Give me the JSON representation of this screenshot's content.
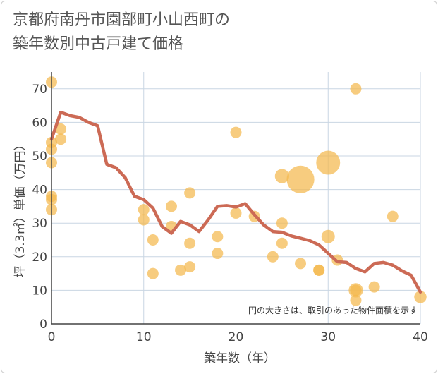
{
  "chart_data": {
    "type": "scatter",
    "title_line1": "京都府南丹市園部町小山西町の",
    "title_line2": "築年数別中古戸建て価格",
    "xlabel": "築年数（年）",
    "ylabel": "坪（3.3㎡）単価（万円）",
    "xlim": [
      0,
      40
    ],
    "ylim": [
      0,
      75
    ],
    "x_ticks": [
      "0",
      "10",
      "20",
      "30",
      "40"
    ],
    "y_ticks": [
      "0",
      "10",
      "20",
      "30",
      "40",
      "50",
      "60",
      "70"
    ],
    "note": "円の大きさは、取引のあった物件面積を示す",
    "colors": {
      "bubble": "#f4b84e",
      "line": "#cc6a55",
      "grid": "#c9d6e3"
    },
    "points": [
      {
        "x": 0,
        "y": 72,
        "s": 1
      },
      {
        "x": 0,
        "y": 54,
        "s": 1
      },
      {
        "x": 0,
        "y": 52,
        "s": 1
      },
      {
        "x": 0,
        "y": 48,
        "s": 1
      },
      {
        "x": 0,
        "y": 38,
        "s": 1
      },
      {
        "x": 0,
        "y": 37,
        "s": 1
      },
      {
        "x": 0,
        "y": 34,
        "s": 1
      },
      {
        "x": 1,
        "y": 58,
        "s": 1
      },
      {
        "x": 1,
        "y": 55,
        "s": 1
      },
      {
        "x": 10,
        "y": 34,
        "s": 1
      },
      {
        "x": 10,
        "y": 31,
        "s": 1
      },
      {
        "x": 11,
        "y": 25,
        "s": 1
      },
      {
        "x": 11,
        "y": 15,
        "s": 1
      },
      {
        "x": 13,
        "y": 35,
        "s": 1
      },
      {
        "x": 13,
        "y": 29,
        "s": 1
      },
      {
        "x": 14,
        "y": 16,
        "s": 1
      },
      {
        "x": 15,
        "y": 39,
        "s": 1
      },
      {
        "x": 15,
        "y": 24,
        "s": 1
      },
      {
        "x": 15,
        "y": 17,
        "s": 1
      },
      {
        "x": 18,
        "y": 26,
        "s": 1
      },
      {
        "x": 18,
        "y": 21,
        "s": 1
      },
      {
        "x": 20,
        "y": 57,
        "s": 1
      },
      {
        "x": 20,
        "y": 33,
        "s": 1
      },
      {
        "x": 22,
        "y": 32,
        "s": 1
      },
      {
        "x": 24,
        "y": 20,
        "s": 1
      },
      {
        "x": 25,
        "y": 44,
        "s": 1.6
      },
      {
        "x": 25,
        "y": 30,
        "s": 1
      },
      {
        "x": 25,
        "y": 24,
        "s": 1
      },
      {
        "x": 27,
        "y": 43,
        "s": 6
      },
      {
        "x": 27,
        "y": 18,
        "s": 1
      },
      {
        "x": 29,
        "y": 16,
        "s": 1
      },
      {
        "x": 29,
        "y": 16,
        "s": 1
      },
      {
        "x": 30,
        "y": 48,
        "s": 4.5
      },
      {
        "x": 30,
        "y": 26,
        "s": 1.4
      },
      {
        "x": 31,
        "y": 19,
        "s": 1
      },
      {
        "x": 33,
        "y": 70,
        "s": 1
      },
      {
        "x": 33,
        "y": 10,
        "s": 1.6
      },
      {
        "x": 33,
        "y": 10,
        "s": 1
      },
      {
        "x": 33,
        "y": 7,
        "s": 1
      },
      {
        "x": 35,
        "y": 11,
        "s": 1
      },
      {
        "x": 37,
        "y": 32,
        "s": 1
      },
      {
        "x": 40,
        "y": 8,
        "s": 1.2
      }
    ],
    "trend": {
      "x": [
        0,
        1,
        2,
        3,
        4,
        5,
        6,
        7,
        8,
        9,
        10,
        11,
        12,
        13,
        14,
        15,
        16,
        17,
        18,
        19,
        20,
        21,
        22,
        23,
        24,
        25,
        26,
        27,
        28,
        29,
        30,
        31,
        32,
        33,
        34,
        35,
        36,
        37,
        38,
        39,
        40
      ],
      "y": [
        55,
        63,
        62,
        61.5,
        60,
        59,
        47.5,
        46.5,
        43.5,
        38,
        37,
        34.5,
        29,
        27,
        30.5,
        29.5,
        27.5,
        31,
        35,
        35.2,
        34.8,
        35.8,
        32.5,
        29.5,
        27.5,
        27.3,
        26.2,
        25.5,
        24.8,
        23.5,
        21,
        18.5,
        18.3,
        16.5,
        15.5,
        18,
        18.3,
        17.5,
        15.8,
        14.5,
        9.5
      ]
    }
  }
}
